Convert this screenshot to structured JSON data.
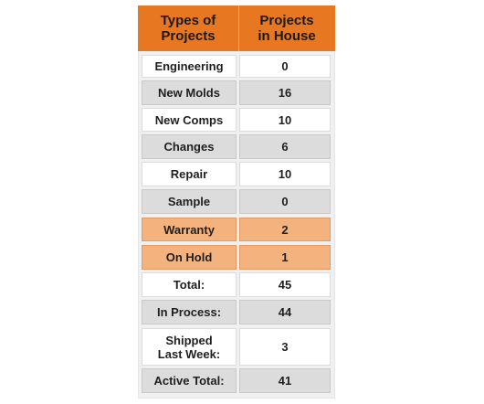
{
  "table": {
    "headers": [
      "Types of\nProjects",
      "Projects\nin House"
    ],
    "rows": [
      {
        "type": "Engineering",
        "count": "0",
        "style": "white"
      },
      {
        "type": "New Molds",
        "count": "16",
        "style": "gray"
      },
      {
        "type": "New Comps",
        "count": "10",
        "style": "white"
      },
      {
        "type": "Changes",
        "count": "6",
        "style": "gray"
      },
      {
        "type": "Repair",
        "count": "10",
        "style": "white"
      },
      {
        "type": "Sample",
        "count": "0",
        "style": "gray"
      },
      {
        "type": "Warranty",
        "count": "2",
        "style": "orange"
      },
      {
        "type": "On Hold",
        "count": "1",
        "style": "orange"
      },
      {
        "type": "Total:",
        "count": "45",
        "style": "white"
      },
      {
        "type": "In Process:",
        "count": "44",
        "style": "gray"
      },
      {
        "type": "Shipped\nLast Week:",
        "count": "3",
        "style": "white"
      },
      {
        "type": "Active Total:",
        "count": "41",
        "style": "gray"
      }
    ]
  },
  "colors": {
    "header": "#e87722",
    "row_white": "#ffffff",
    "row_gray": "#dcdcdc",
    "row_highlight": "#f3b27e"
  }
}
